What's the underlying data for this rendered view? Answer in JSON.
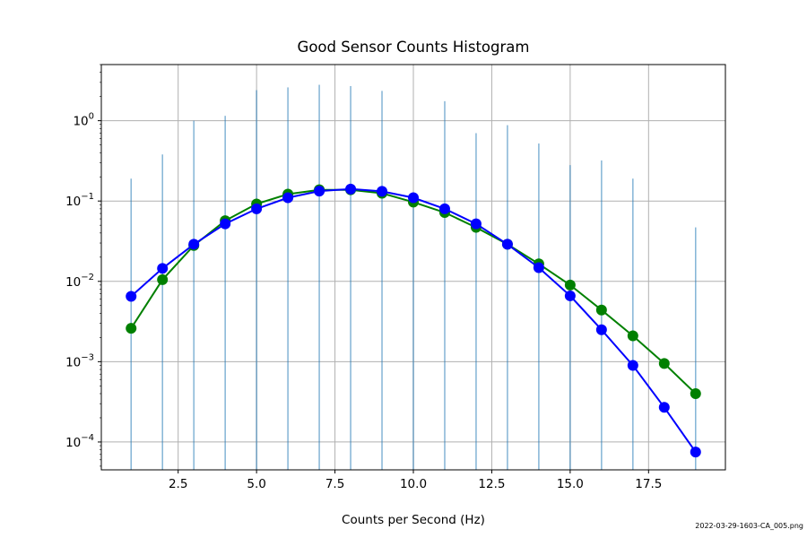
{
  "chart_data": {
    "type": "line",
    "title": "Good Sensor Counts Histogram",
    "xlabel": "Counts per Second (Hz)",
    "ylabel": "",
    "xlim": [
      0.05,
      19.95
    ],
    "ylim": [
      4.5e-05,
      5.0
    ],
    "yscale": "log",
    "grid": true,
    "legend": "none",
    "xticks": [
      2.5,
      5.0,
      7.5,
      10.0,
      12.5,
      15.0,
      17.5
    ],
    "xtick_labels": [
      "2.5",
      "5.0",
      "7.5",
      "10.0",
      "12.5",
      "15.0",
      "17.5"
    ],
    "yticks": [
      {
        "value": 0.0001,
        "base": "10",
        "exp": "−4"
      },
      {
        "value": 0.001,
        "base": "10",
        "exp": "−3"
      },
      {
        "value": 0.01,
        "base": "10",
        "exp": "−2"
      },
      {
        "value": 0.1,
        "base": "10",
        "exp": "−1"
      },
      {
        "value": 1,
        "base": "10",
        "exp": "0"
      }
    ],
    "histogram": {
      "color": "#1f77b4",
      "bars": [
        {
          "x": 1,
          "y": 0.19
        },
        {
          "x": 2,
          "y": 0.38
        },
        {
          "x": 3,
          "y": 1.0
        },
        {
          "x": 4,
          "y": 1.15
        },
        {
          "x": 5,
          "y": 2.4
        },
        {
          "x": 6,
          "y": 2.6
        },
        {
          "x": 7,
          "y": 2.8
        },
        {
          "x": 8,
          "y": 2.7
        },
        {
          "x": 9,
          "y": 2.35
        },
        {
          "x": 10,
          "y": 0.1
        },
        {
          "x": 11,
          "y": 1.75
        },
        {
          "x": 12,
          "y": 0.7
        },
        {
          "x": 13,
          "y": 0.88
        },
        {
          "x": 14,
          "y": 0.52
        },
        {
          "x": 15,
          "y": 0.28
        },
        {
          "x": 16,
          "y": 0.32
        },
        {
          "x": 17,
          "y": 0.19
        },
        {
          "x": 19,
          "y": 0.047
        }
      ]
    },
    "series": [
      {
        "color": "#008000",
        "x": [
          1,
          2,
          3,
          4,
          5,
          6,
          7,
          8,
          9,
          10,
          11,
          12,
          13,
          14,
          15,
          16,
          17,
          18,
          19
        ],
        "y": [
          0.0026,
          0.0105,
          0.028,
          0.057,
          0.092,
          0.122,
          0.138,
          0.138,
          0.125,
          0.097,
          0.072,
          0.047,
          0.029,
          0.0165,
          0.009,
          0.0044,
          0.0021,
          0.00095,
          0.0004
        ]
      },
      {
        "color": "#0000ff",
        "x": [
          1,
          2,
          3,
          4,
          5,
          6,
          7,
          8,
          9,
          10,
          11,
          12,
          13,
          14,
          15,
          16,
          17,
          18,
          19
        ],
        "y": [
          0.0065,
          0.0145,
          0.029,
          0.052,
          0.08,
          0.11,
          0.133,
          0.141,
          0.132,
          0.11,
          0.08,
          0.052,
          0.029,
          0.0148,
          0.0066,
          0.0025,
          0.0009,
          0.00027,
          7.5e-05
        ]
      }
    ]
  },
  "watermark": "2022-03-29-1603-CA_005.png"
}
